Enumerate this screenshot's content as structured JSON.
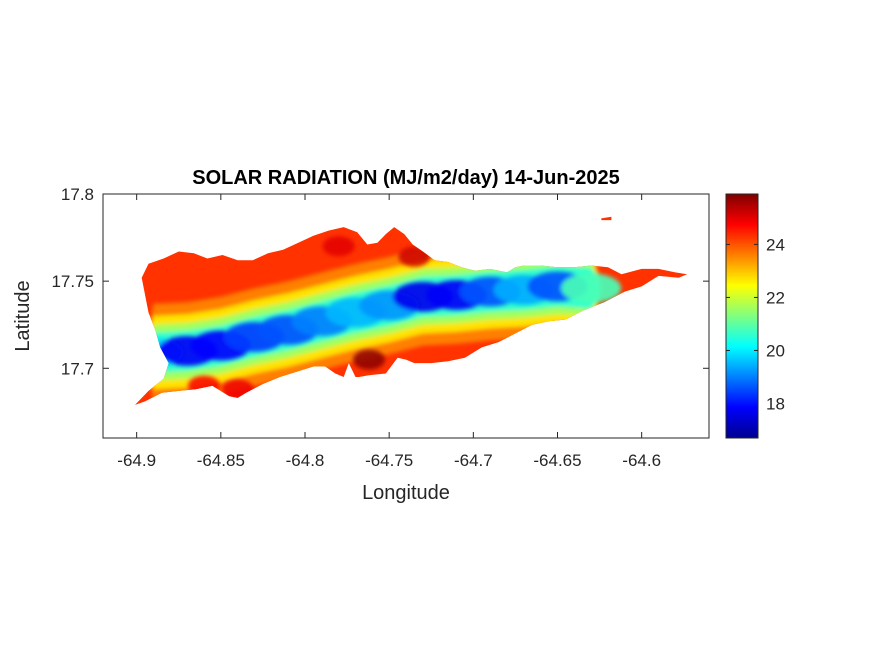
{
  "chart_data": {
    "type": "heatmap",
    "title": "SOLAR RADIATION (MJ/m2/day) 14-Jun-2025",
    "xlabel": "Longitude",
    "ylabel": "Latitude",
    "xlim": [
      -64.92,
      -64.56
    ],
    "ylim": [
      17.66,
      17.8
    ],
    "x_ticks": [
      -64.9,
      -64.85,
      -64.8,
      -64.75,
      -64.7,
      -64.65,
      -64.6
    ],
    "x_tick_labels": [
      "-64.9",
      "-64.85",
      "-64.8",
      "-64.75",
      "-64.7",
      "-64.65",
      "-64.6"
    ],
    "y_ticks": [
      17.7,
      17.75,
      17.8
    ],
    "y_tick_labels": [
      "17.7",
      "17.75",
      "17.8"
    ],
    "colorbar": {
      "colormap": "jet",
      "range": [
        16.7,
        25.9
      ],
      "ticks": [
        18,
        20,
        22,
        24
      ],
      "tick_labels": [
        "18",
        "20",
        "22",
        "24"
      ]
    },
    "island_outline": [
      [
        -64.901,
        17.679
      ],
      [
        -64.893,
        17.687
      ],
      [
        -64.884,
        17.694
      ],
      [
        -64.881,
        17.703
      ],
      [
        -64.886,
        17.712
      ],
      [
        -64.889,
        17.722
      ],
      [
        -64.893,
        17.732
      ],
      [
        -64.895,
        17.742
      ],
      [
        -64.897,
        17.752
      ],
      [
        -64.893,
        17.76
      ],
      [
        -64.884,
        17.763
      ],
      [
        -64.875,
        17.767
      ],
      [
        -64.866,
        17.766
      ],
      [
        -64.858,
        17.763
      ],
      [
        -64.849,
        17.765
      ],
      [
        -64.84,
        17.762
      ],
      [
        -64.831,
        17.762
      ],
      [
        -64.822,
        17.766
      ],
      [
        -64.813,
        17.768
      ],
      [
        -64.804,
        17.772
      ],
      [
        -64.795,
        17.776
      ],
      [
        -64.786,
        17.779
      ],
      [
        -64.777,
        17.781
      ],
      [
        -64.769,
        17.778
      ],
      [
        -64.763,
        17.771
      ],
      [
        -64.757,
        17.772
      ],
      [
        -64.752,
        17.777
      ],
      [
        -64.747,
        17.781
      ],
      [
        -64.741,
        17.777
      ],
      [
        -64.736,
        17.771
      ],
      [
        -64.73,
        17.767
      ],
      [
        -64.723,
        17.762
      ],
      [
        -64.715,
        17.761
      ],
      [
        -64.707,
        17.758
      ],
      [
        -64.699,
        17.756
      ],
      [
        -64.69,
        17.757
      ],
      [
        -64.68,
        17.755
      ],
      [
        -64.675,
        17.758
      ],
      [
        -64.67,
        17.759
      ],
      [
        -64.66,
        17.759
      ],
      [
        -64.65,
        17.758
      ],
      [
        -64.64,
        17.758
      ],
      [
        -64.63,
        17.759
      ],
      [
        -64.62,
        17.758
      ],
      [
        -64.612,
        17.754
      ],
      [
        -64.6,
        17.757
      ],
      [
        -64.59,
        17.757
      ],
      [
        -64.58,
        17.755
      ],
      [
        -64.573,
        17.754
      ],
      [
        -64.578,
        17.752
      ],
      [
        -64.59,
        17.753
      ],
      [
        -64.6,
        17.747
      ],
      [
        -64.61,
        17.744
      ],
      [
        -64.622,
        17.738
      ],
      [
        -64.635,
        17.733
      ],
      [
        -64.645,
        17.728
      ],
      [
        -64.655,
        17.727
      ],
      [
        -64.665,
        17.725
      ],
      [
        -64.675,
        17.72
      ],
      [
        -64.685,
        17.715
      ],
      [
        -64.695,
        17.712
      ],
      [
        -64.705,
        17.706
      ],
      [
        -64.715,
        17.704
      ],
      [
        -64.725,
        17.703
      ],
      [
        -64.735,
        17.703
      ],
      [
        -64.74,
        17.705
      ],
      [
        -64.745,
        17.706
      ],
      [
        -64.752,
        17.697
      ],
      [
        -64.762,
        17.696
      ],
      [
        -64.768,
        17.695
      ],
      [
        -64.77,
        17.695
      ],
      [
        -64.774,
        17.703
      ],
      [
        -64.777,
        17.695
      ],
      [
        -64.782,
        17.697
      ],
      [
        -64.788,
        17.701
      ],
      [
        -64.795,
        17.701
      ],
      [
        -64.805,
        17.698
      ],
      [
        -64.815,
        17.695
      ],
      [
        -64.825,
        17.691
      ],
      [
        -64.835,
        17.686
      ],
      [
        -64.84,
        17.683
      ],
      [
        -64.845,
        17.684
      ],
      [
        -64.855,
        17.69
      ],
      [
        -64.865,
        17.688
      ],
      [
        -64.875,
        17.687
      ],
      [
        -64.885,
        17.686
      ],
      [
        -64.895,
        17.681
      ]
    ],
    "islet_outline": [
      [
        -64.624,
        17.786
      ],
      [
        -64.618,
        17.787
      ],
      [
        -64.618,
        17.785
      ],
      [
        -64.624,
        17.785
      ]
    ],
    "low_core_band": [
      {
        "lon": -64.89,
        "lat": 17.709,
        "value": 19.8
      },
      {
        "lon": -64.87,
        "lat": 17.71,
        "value": 17.8
      },
      {
        "lon": -64.85,
        "lat": 17.713,
        "value": 17.9
      },
      {
        "lon": -64.83,
        "lat": 17.718,
        "value": 18.4
      },
      {
        "lon": -64.81,
        "lat": 17.722,
        "value": 18.6
      },
      {
        "lon": -64.79,
        "lat": 17.727,
        "value": 19.0
      },
      {
        "lon": -64.77,
        "lat": 17.732,
        "value": 19.5
      },
      {
        "lon": -64.75,
        "lat": 17.736,
        "value": 19.2
      },
      {
        "lon": -64.73,
        "lat": 17.741,
        "value": 17.7
      },
      {
        "lon": -64.71,
        "lat": 17.742,
        "value": 17.8
      },
      {
        "lon": -64.69,
        "lat": 17.744,
        "value": 18.6
      },
      {
        "lon": -64.67,
        "lat": 17.745,
        "value": 19.4
      },
      {
        "lon": -64.65,
        "lat": 17.747,
        "value": 18.6
      },
      {
        "lon": -64.63,
        "lat": 17.746,
        "value": 20.8
      }
    ],
    "high_spots": [
      {
        "lon": -64.762,
        "lat": 17.705,
        "value": 25.8
      },
      {
        "lon": -64.78,
        "lat": 17.77,
        "value": 25.0
      },
      {
        "lon": -64.735,
        "lat": 17.764,
        "value": 25.2
      },
      {
        "lon": -64.86,
        "lat": 17.69,
        "value": 24.8
      },
      {
        "lon": -64.84,
        "lat": 17.688,
        "value": 24.9
      }
    ]
  }
}
